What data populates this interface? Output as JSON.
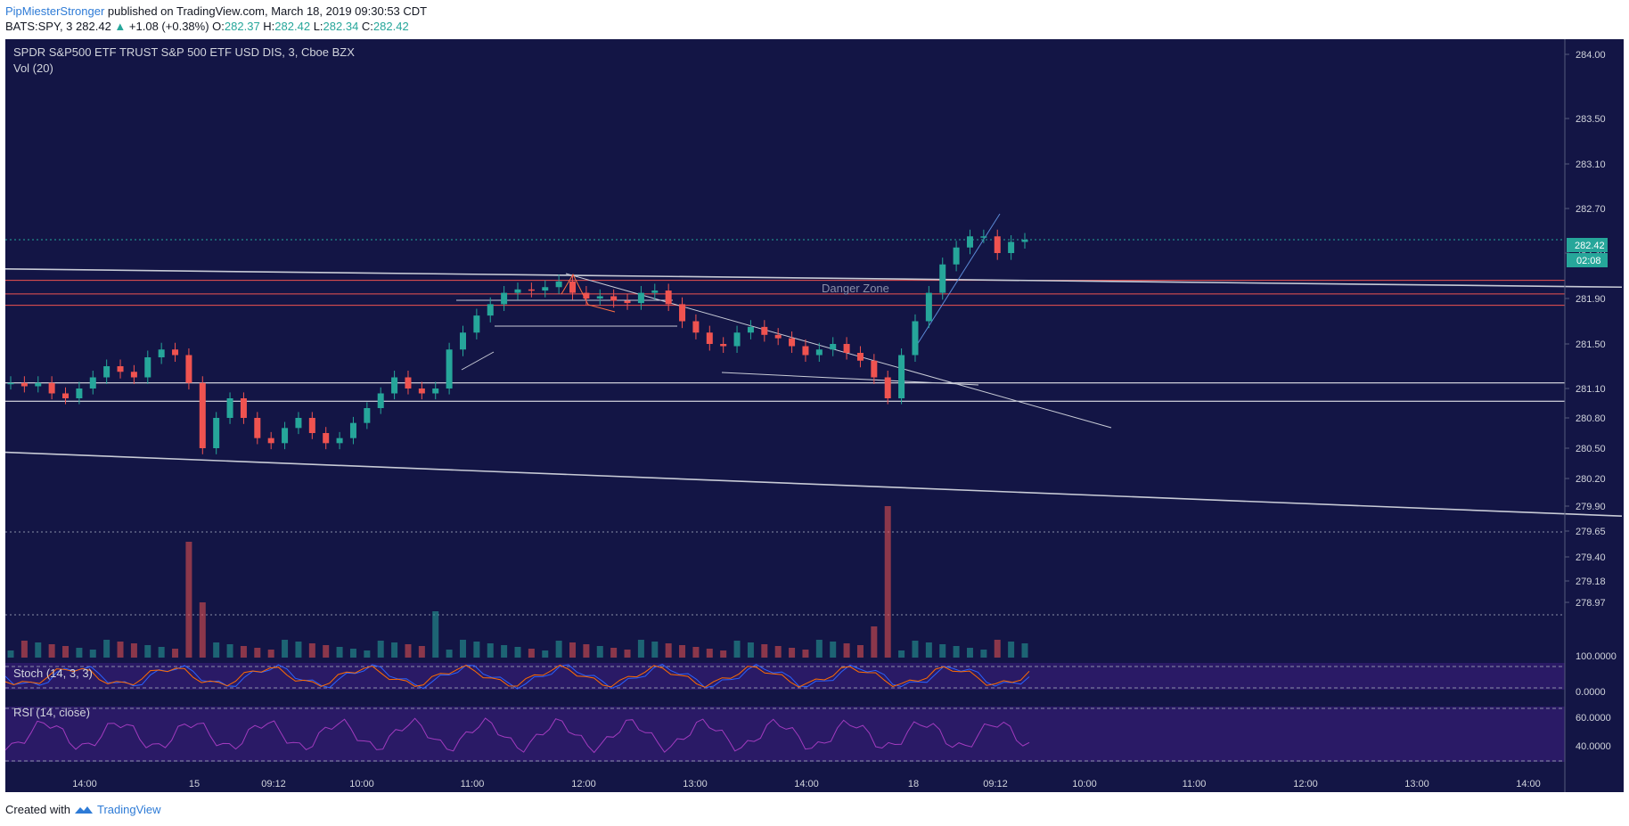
{
  "header": {
    "author": "PipMiesterStronger",
    "published": "published on TradingView.com, March 18, 2019 09:30:53 CDT"
  },
  "quote": {
    "symbol": "BATS:SPY, 3",
    "last": "282.42",
    "arrow": "▲",
    "change": "+1.08 (+0.38%)",
    "o_label": "O:",
    "o": "282.37",
    "h_label": "H:",
    "h": "282.42",
    "l_label": "L:",
    "l": "282.34",
    "c_label": "C:",
    "c": "282.42"
  },
  "legend": {
    "title": "SPDR S&P500 ETF TRUST S&P 500 ETF USD DIS, 3, Cboe BZX",
    "vol": "Vol (20)",
    "stoch": "Stoch (14, 3, 3)",
    "rsi": "RSI (14, close)"
  },
  "annotation": "Danger Zone",
  "price_badge": {
    "price": "282.42",
    "countdown": "02:08"
  },
  "footer": {
    "created": "Created with",
    "brand": "TradingView"
  },
  "colors": {
    "background": "#131545",
    "up": "#26a69a",
    "down": "#ef5350",
    "indicator_bg": "#2a1a66",
    "rsi_line": "#a23bbf",
    "stoch_k": "#2962ff",
    "stoch_d": "#ff6d00"
  },
  "chart_data": {
    "type": "candlestick",
    "title": "SPDR S&P500 ETF TRUST S&P 500 ETF USD DIS, 3, Cboe BZX",
    "interval": "3",
    "price_ticks": [
      284.0,
      283.5,
      283.1,
      282.7,
      282.3,
      281.9,
      281.5,
      281.1,
      280.8,
      280.5,
      280.2,
      279.9,
      279.65,
      279.4,
      279.18,
      278.97
    ],
    "price_range": [
      278.95,
      284.1
    ],
    "time_labels": [
      "14:00",
      "15",
      "09:12",
      "10:00",
      "11:00",
      "12:00",
      "13:00",
      "14:00",
      "18",
      "09:12",
      "10:00",
      "11:00",
      "12:00",
      "13:00",
      "14:00"
    ],
    "horizontal_levels": [
      {
        "price": 282.06,
        "color": "#ef5350"
      },
      {
        "price": 281.94,
        "color": "#ef5350"
      },
      {
        "price": 281.84,
        "color": "#ef5350"
      },
      {
        "price": 281.15,
        "color": "#ffffff"
      },
      {
        "price": 280.97,
        "color": "#ffffff"
      }
    ],
    "trendlines": [
      {
        "from": [
          0,
          282.16
        ],
        "to": [
          1,
          282.0
        ]
      },
      {
        "from": [
          0,
          280.46
        ],
        "to": [
          1,
          279.8
        ]
      }
    ],
    "current_price": 282.42,
    "stoch_levels": [
      80,
      20
    ],
    "rsi_levels": [
      70,
      30
    ],
    "rsi_ticks": [
      "60.0000",
      "40.0000"
    ],
    "stoch_ticks": [
      "100.0000",
      "0.0000"
    ],
    "candles_close_path": [
      281.15,
      281.12,
      281.15,
      281.05,
      281.0,
      281.1,
      281.2,
      281.3,
      281.25,
      281.2,
      281.38,
      281.45,
      281.4,
      281.15,
      280.5,
      280.8,
      281.0,
      280.8,
      280.6,
      280.55,
      280.7,
      280.8,
      280.65,
      280.55,
      280.6,
      280.75,
      280.9,
      281.05,
      281.2,
      281.1,
      281.05,
      281.1,
      281.45,
      281.6,
      281.75,
      281.85,
      281.95,
      281.98,
      281.97,
      282.0,
      282.05,
      281.95,
      281.9,
      281.92,
      281.88,
      281.86,
      281.95,
      281.97,
      281.85,
      281.7,
      281.6,
      281.5,
      281.48,
      281.6,
      281.65,
      281.58,
      281.55,
      281.48,
      281.4,
      281.45,
      281.5,
      281.42,
      281.35,
      281.2,
      281.0,
      281.4,
      281.7,
      281.95,
      282.2,
      282.35,
      282.45,
      282.45,
      282.3,
      282.4,
      282.42
    ]
  }
}
